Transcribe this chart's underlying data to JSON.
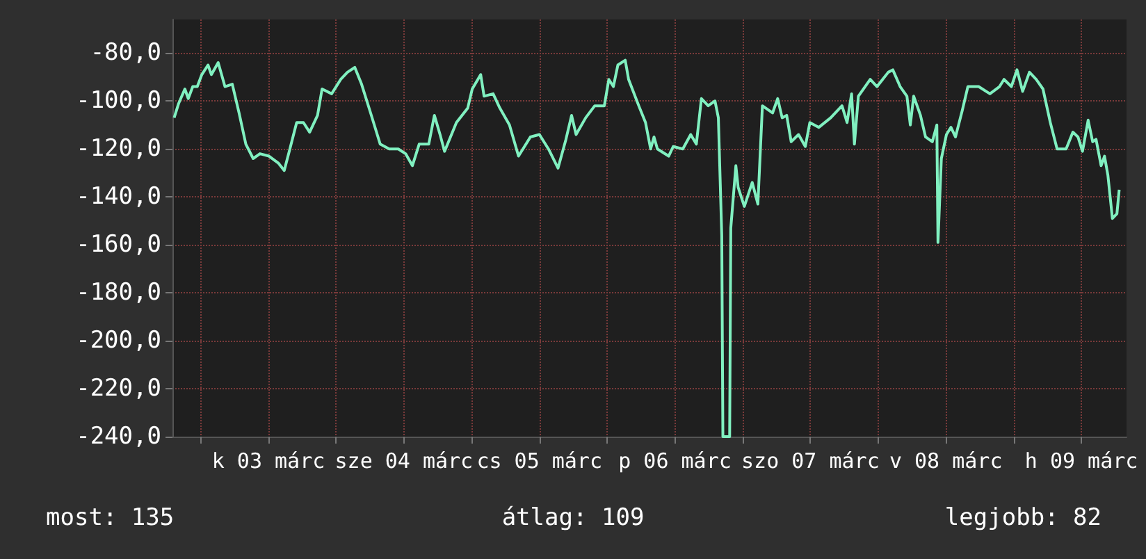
{
  "chart_data": {
    "type": "line",
    "x": [
      "--03-02T19:18",
      "--03-02T20:06",
      "--03-02T21:12",
      "--03-02T21:48",
      "--03-02T22:36",
      "--03-02T23:24",
      "--03-03T00:12",
      "--03-03T01:18",
      "--03-03T01:54",
      "--03-03T03:06",
      "--03-03T04:18",
      "--03-03T05:36",
      "--03-03T06:48",
      "--03-03T08:00",
      "--03-03T09:18",
      "--03-03T10:30",
      "--03-03T12:06",
      "--03-03T13:48",
      "--03-03T14:48",
      "--03-03T15:48",
      "--03-03T17:00",
      "--03-03T18:12",
      "--03-03T19:18",
      "--03-03T20:42",
      "--03-03T21:30",
      "--03-03T23:12",
      "--03-04T00:48",
      "--03-04T02:00",
      "--03-04T03:18",
      "--03-04T04:30",
      "--03-04T06:06",
      "--03-04T07:48",
      "--03-04T09:24",
      "--03-04T11:00",
      "--03-04T12:18",
      "--03-04T13:30",
      "--03-04T14:42",
      "--03-04T16:24",
      "--03-04T17:24",
      "--03-04T18:24",
      "--03-04T19:12",
      "--03-04T21:18",
      "--03-04T23:18",
      "--03-05T00:06",
      "--03-05T01:36",
      "--03-05T02:12",
      "--03-05T03:48",
      "--03-05T05:00",
      "--03-05T06:42",
      "--03-05T08:18",
      "--03-05T10:24",
      "--03-05T12:00",
      "--03-05T13:36",
      "--03-05T15:18",
      "--03-05T16:42",
      "--03-05T17:42",
      "--03-05T18:30",
      "--03-05T20:12",
      "--03-05T21:48",
      "--03-05T23:30",
      "--03-06T00:18",
      "--03-06T01:06",
      "--03-06T01:54",
      "--03-06T03:12",
      "--03-06T03:48",
      "--03-06T05:36",
      "--03-06T06:48",
      "--03-06T07:42",
      "--03-06T08:18",
      "--03-06T08:54",
      "--03-06T10:54",
      "--03-06T11:42",
      "--03-06T13:24",
      "--03-06T14:48",
      "--03-06T15:48",
      "--03-06T16:42",
      "--03-06T17:54",
      "--03-06T19:06",
      "--03-06T19:42",
      "--03-06T20:18",
      "--03-06T20:30",
      "--03-06T21:42",
      "--03-06T21:54",
      "--03-06T22:48",
      "--03-06T23:12",
      "--03-07T00:18",
      "--03-07T01:42",
      "--03-07T02:42",
      "--03-07T03:30",
      "--03-07T05:18",
      "--03-07T06:12",
      "--03-07T07:00",
      "--03-07T07:48",
      "--03-07T08:36",
      "--03-07T09:54",
      "--03-07T11:06",
      "--03-07T11:54",
      "--03-07T13:30",
      "--03-07T15:36",
      "--03-07T17:36",
      "--03-07T18:30",
      "--03-07T19:18",
      "--03-07T19:48",
      "--03-07T20:30",
      "--03-07T22:36",
      "--03-07T23:48",
      "--03-08T01:48",
      "--03-08T02:36",
      "--03-08T03:54",
      "--03-08T05:06",
      "--03-08T05:42",
      "--03-08T06:18",
      "--03-08T07:30",
      "--03-08T08:24",
      "--03-08T09:36",
      "--03-08T10:24",
      "--03-08T10:36",
      "--03-08T11:12",
      "--03-08T12:06",
      "--03-08T12:54",
      "--03-08T13:42",
      "--03-08T14:54",
      "--03-08T15:54",
      "--03-08T17:48",
      "--03-08T19:48",
      "--03-08T21:30",
      "--03-08T22:18",
      "--03-08T23:36",
      "--03-09T00:36",
      "--03-09T01:36",
      "--03-09T02:48",
      "--03-09T04:00",
      "--03-09T05:12",
      "--03-09T06:30",
      "--03-09T07:42",
      "--03-09T09:18",
      "--03-09T10:30",
      "--03-09T11:24",
      "--03-09T12:12",
      "--03-09T13:12",
      "--03-09T14:00",
      "--03-09T14:36",
      "--03-09T15:30",
      "--03-09T16:06",
      "--03-09T16:42",
      "--03-09T17:30",
      "--03-09T18:18",
      "--03-09T18:42"
    ],
    "series": [
      {
        "color": "#80f0c0",
        "values": [
          -107,
          -101,
          -95,
          -99,
          -94,
          -94,
          -89,
          -85,
          -89,
          -84,
          -94,
          -93,
          -105,
          -118,
          -124,
          -122,
          -123,
          -126,
          -129,
          -120,
          -109,
          -109,
          -113,
          -106,
          -95,
          -97,
          -91,
          -88,
          -86,
          -93,
          -105,
          -118,
          -120,
          -120,
          -122,
          -127,
          -118,
          -118,
          -106,
          -114,
          -121,
          -109,
          -103,
          -95,
          -89,
          -98,
          -97,
          -103,
          -110,
          -123,
          -115,
          -114,
          -120,
          -128,
          -116,
          -106,
          -114,
          -107,
          -102,
          -102,
          -91,
          -94,
          -85,
          -83,
          -91,
          -102,
          -109,
          -120,
          -115,
          -120,
          -123,
          -119,
          -120,
          -114,
          -118,
          -99,
          -102,
          -100,
          -107,
          -156,
          -240,
          -240,
          -153,
          -127,
          -136,
          -144,
          -134,
          -143,
          -102,
          -105,
          -99,
          -107,
          -106,
          -117,
          -114,
          -119,
          -109,
          -111,
          -107,
          -102,
          -109,
          -97,
          -118,
          -98,
          -91,
          -94,
          -88,
          -87,
          -94,
          -98,
          -110,
          -98,
          -106,
          -115,
          -117,
          -110,
          -159,
          -124,
          -114,
          -111,
          -115,
          -104,
          -94,
          -94,
          -97,
          -94,
          -91,
          -94,
          -87,
          -96,
          -88,
          -91,
          -95,
          -109,
          -120,
          -120,
          -113,
          -115,
          -121,
          -108,
          -117,
          -116,
          -127,
          -123,
          -131,
          -149,
          -147,
          -137
        ]
      }
    ],
    "xlim": [
      "--03-02T19:00",
      "--03-09T20:00"
    ],
    "xticks": [
      {
        "value": "--03-03T00:00",
        "label": null
      },
      {
        "value": "--03-03T12:00",
        "label": "k 03 márc"
      },
      {
        "value": "--03-04T00:00",
        "label": null
      },
      {
        "value": "--03-04T12:00",
        "label": "sze 04 márc"
      },
      {
        "value": "--03-05T00:00",
        "label": null
      },
      {
        "value": "--03-05T12:00",
        "label": "cs 05 márc"
      },
      {
        "value": "--03-06T00:00",
        "label": null
      },
      {
        "value": "--03-06T12:00",
        "label": "p 06 márc"
      },
      {
        "value": "--03-07T00:00",
        "label": null
      },
      {
        "value": "--03-07T12:00",
        "label": "szo 07 márc"
      },
      {
        "value": "--03-08T00:00",
        "label": null
      },
      {
        "value": "--03-08T12:00",
        "label": "v 08 márc"
      },
      {
        "value": "--03-09T00:00",
        "label": null
      },
      {
        "value": "--03-09T12:00",
        "label": "h 09 márc"
      }
    ],
    "ylim": [
      -240,
      -66
    ],
    "yticks": [
      {
        "value": -240,
        "label": "-240,0"
      },
      {
        "value": -220,
        "label": "-220,0"
      },
      {
        "value": -200,
        "label": "-200,0"
      },
      {
        "value": -180,
        "label": "-180,0"
      },
      {
        "value": -160,
        "label": "-160,0"
      },
      {
        "value": -140,
        "label": "-140,0"
      },
      {
        "value": -120,
        "label": "-120,0"
      },
      {
        "value": -100,
        "label": "-100,0"
      },
      {
        "value": -80,
        "label": "-80,0"
      }
    ],
    "grid": true,
    "marker": "none",
    "line_style": "solid",
    "annotations": [
      "most: 135",
      "átlag: 109",
      "legjobb: 82"
    ]
  }
}
